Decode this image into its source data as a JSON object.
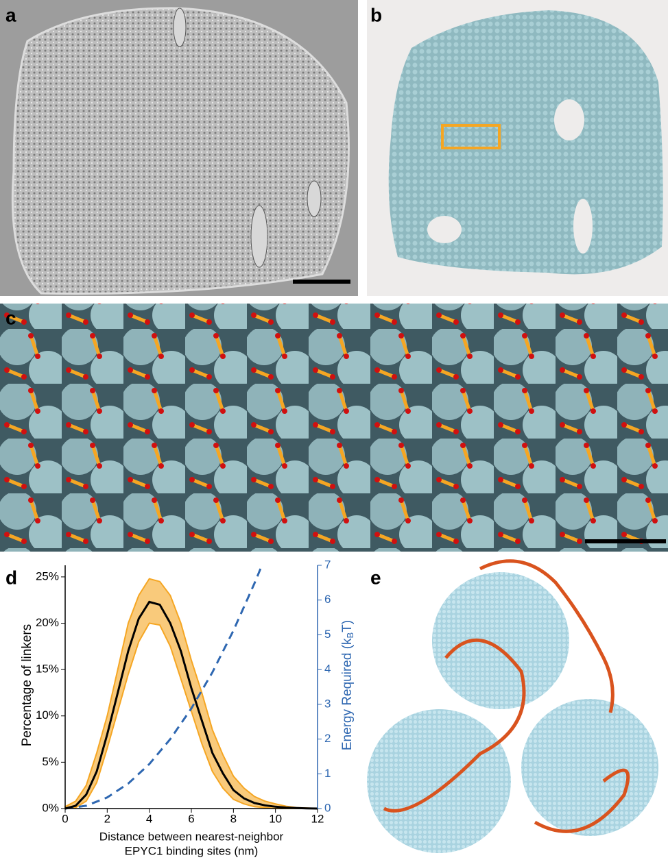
{
  "panels": [
    "a",
    "b",
    "c",
    "d",
    "e"
  ],
  "chart_data": {
    "type": "line",
    "x_label": [
      "Distance between nearest-neighbor",
      "EPYC1 binding sites (nm)"
    ],
    "y_label": "Percentage of linkers",
    "y2_label": {
      "main": "Energy Required (k",
      "sub": "B",
      "end": "T)"
    },
    "x": [
      0,
      0.5,
      1,
      1.5,
      2,
      2.5,
      3,
      3.5,
      4,
      4.5,
      5,
      5.5,
      6,
      6.5,
      7,
      7.5,
      8,
      8.5,
      9,
      9.5,
      10,
      10.5,
      11,
      11.5,
      12
    ],
    "series": [
      {
        "color": "#000000",
        "values": [
          0,
          0.3,
          1.5,
          4,
          8,
          12.5,
          17,
          20.5,
          22.3,
          22,
          20,
          17,
          13,
          9.5,
          6,
          3.8,
          2,
          1.1,
          0.6,
          0.35,
          0.2,
          0.1,
          0.05,
          0.02,
          0
        ]
      }
    ],
    "band": {
      "color": "#f5a623",
      "upper": [
        0.2,
        0.8,
        2.5,
        6,
        10,
        15,
        20,
        23,
        24.8,
        24.5,
        23,
        20,
        16,
        12.5,
        8.5,
        5.8,
        3.5,
        2.2,
        1.3,
        0.8,
        0.5,
        0.25,
        0.1,
        0.05,
        0
      ],
      "lower": [
        0,
        0.1,
        0.8,
        2.8,
        6.5,
        10.5,
        14.5,
        18,
        20,
        19.8,
        17.5,
        14,
        10.5,
        7,
        4,
        2.2,
        1,
        0.5,
        0.2,
        0.1,
        0,
        0,
        0,
        0,
        0
      ]
    },
    "energy": {
      "axis": "y2",
      "color": "#2e67b1",
      "dashed": true,
      "x": [
        0,
        1,
        2,
        3,
        4,
        5,
        6,
        7,
        8,
        9,
        9.3
      ],
      "values": [
        0,
        0.08,
        0.32,
        0.72,
        1.28,
        2,
        2.88,
        3.92,
        5.12,
        6.48,
        6.92
      ]
    },
    "xlim": [
      0,
      12
    ],
    "xticks": [
      0,
      2,
      4,
      6,
      8,
      10,
      12
    ],
    "ylim": [
      0,
      26.25
    ],
    "yticks": [
      {
        "value": 0,
        "label": "0%"
      },
      {
        "value": 5,
        "label": "5%"
      },
      {
        "value": 10,
        "label": "10%"
      },
      {
        "value": 15,
        "label": "15%"
      },
      {
        "value": 20,
        "label": "20%"
      },
      {
        "value": 25,
        "label": "25%"
      }
    ],
    "y2lim": [
      0,
      7
    ],
    "y2ticks": [
      0,
      1,
      2,
      3,
      4,
      5,
      6,
      7
    ]
  }
}
